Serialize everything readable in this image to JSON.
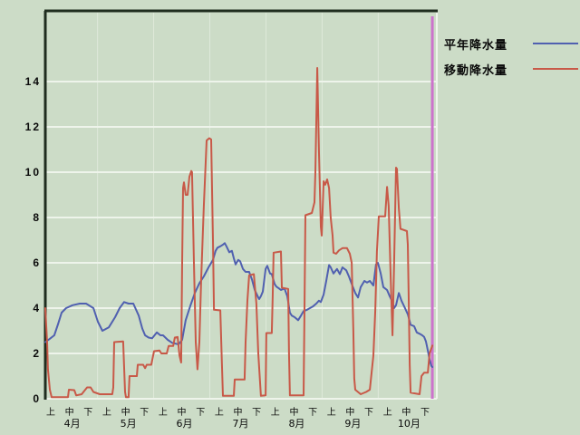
{
  "legend": {
    "entries": [
      {
        "label": "平年降水量",
        "color": "#5060b0"
      },
      {
        "label": "移動降水量",
        "color": "#c85948"
      }
    ]
  },
  "chart_data": {
    "type": "line",
    "title": "",
    "ylabel": "",
    "xlabel": "",
    "grid": true,
    "legend_position": "top-right-outside",
    "y_axis": {
      "ticks": [
        0,
        2,
        4,
        6,
        8,
        10,
        12,
        14
      ],
      "min": 0,
      "max": 17.1
    },
    "x_axis": {
      "period_ticks": [
        "上",
        "中",
        "下",
        "上",
        "中",
        "下",
        "上",
        "中",
        "下",
        "上",
        "中",
        "下",
        "上",
        "中",
        "下",
        "上",
        "中",
        "下",
        "上",
        "中",
        "下"
      ],
      "month_labels": [
        "4月",
        "5月",
        "6月",
        "7月",
        "8月",
        "9月",
        "10月"
      ],
      "months_span_ticks": 3
    },
    "marker_line": {
      "name": "current-position",
      "t": 20.39,
      "color": "#cc73cc"
    },
    "colors": {
      "background": "#ccdcc7",
      "gridline": "#eef4eb",
      "month_divider": "#dfe9da",
      "box_dark": "#1f2d1f",
      "box_light": "#eef4eb",
      "text": "#0a0a0a"
    },
    "series": [
      {
        "name": "平年降水量",
        "color": "#5060b0",
        "points": [
          [
            -0.29,
            2.5
          ],
          [
            -0.05,
            2.65
          ],
          [
            0.19,
            2.8
          ],
          [
            0.39,
            3.3
          ],
          [
            0.58,
            3.8
          ],
          [
            0.82,
            4.0
          ],
          [
            1.16,
            4.13
          ],
          [
            1.55,
            4.2
          ],
          [
            1.89,
            4.2
          ],
          [
            2.28,
            4.0
          ],
          [
            2.52,
            3.4
          ],
          [
            2.76,
            3.0
          ],
          [
            3.1,
            3.15
          ],
          [
            3.44,
            3.6
          ],
          [
            3.68,
            4.0
          ],
          [
            3.92,
            4.27
          ],
          [
            4.16,
            4.2
          ],
          [
            4.41,
            4.2
          ],
          [
            4.7,
            3.67
          ],
          [
            4.89,
            3.1
          ],
          [
            5.04,
            2.8
          ],
          [
            5.23,
            2.7
          ],
          [
            5.42,
            2.67
          ],
          [
            5.67,
            2.93
          ],
          [
            5.86,
            2.8
          ],
          [
            6.0,
            2.8
          ],
          [
            6.25,
            2.6
          ],
          [
            6.49,
            2.47
          ],
          [
            6.83,
            2.4
          ],
          [
            7.02,
            2.6
          ],
          [
            7.21,
            3.47
          ],
          [
            7.46,
            4.1
          ],
          [
            7.7,
            4.67
          ],
          [
            7.94,
            5.1
          ],
          [
            8.18,
            5.4
          ],
          [
            8.43,
            5.8
          ],
          [
            8.67,
            6.13
          ],
          [
            8.81,
            6.53
          ],
          [
            8.91,
            6.67
          ],
          [
            9.06,
            6.73
          ],
          [
            9.2,
            6.8
          ],
          [
            9.3,
            6.87
          ],
          [
            9.39,
            6.73
          ],
          [
            9.54,
            6.47
          ],
          [
            9.68,
            6.53
          ],
          [
            9.78,
            6.2
          ],
          [
            9.88,
            5.93
          ],
          [
            10.02,
            6.13
          ],
          [
            10.12,
            6.07
          ],
          [
            10.27,
            5.73
          ],
          [
            10.41,
            5.6
          ],
          [
            10.6,
            5.6
          ],
          [
            10.75,
            5.27
          ],
          [
            10.9,
            4.8
          ],
          [
            11.09,
            4.47
          ],
          [
            11.14,
            4.4
          ],
          [
            11.23,
            4.53
          ],
          [
            11.33,
            4.73
          ],
          [
            11.48,
            5.73
          ],
          [
            11.57,
            5.87
          ],
          [
            11.72,
            5.53
          ],
          [
            11.81,
            5.5
          ],
          [
            11.96,
            5.07
          ],
          [
            12.06,
            4.95
          ],
          [
            12.2,
            4.87
          ],
          [
            12.3,
            4.8
          ],
          [
            12.49,
            4.87
          ],
          [
            12.64,
            4.53
          ],
          [
            12.78,
            3.8
          ],
          [
            12.88,
            3.67
          ],
          [
            13.03,
            3.6
          ],
          [
            13.22,
            3.47
          ],
          [
            13.37,
            3.67
          ],
          [
            13.51,
            3.87
          ],
          [
            13.7,
            3.93
          ],
          [
            13.85,
            4.0
          ],
          [
            14.0,
            4.07
          ],
          [
            14.19,
            4.2
          ],
          [
            14.33,
            4.33
          ],
          [
            14.43,
            4.27
          ],
          [
            14.58,
            4.6
          ],
          [
            14.72,
            5.2
          ],
          [
            14.87,
            5.9
          ],
          [
            14.96,
            5.8
          ],
          [
            15.11,
            5.53
          ],
          [
            15.3,
            5.73
          ],
          [
            15.45,
            5.5
          ],
          [
            15.59,
            5.8
          ],
          [
            15.79,
            5.67
          ],
          [
            15.93,
            5.4
          ],
          [
            16.08,
            5.07
          ],
          [
            16.27,
            4.67
          ],
          [
            16.42,
            4.47
          ],
          [
            16.56,
            4.93
          ],
          [
            16.76,
            5.2
          ],
          [
            16.9,
            5.13
          ],
          [
            17.05,
            5.2
          ],
          [
            17.24,
            5.0
          ],
          [
            17.38,
            5.93
          ],
          [
            17.48,
            6.0
          ],
          [
            17.63,
            5.53
          ],
          [
            17.77,
            4.93
          ],
          [
            17.97,
            4.8
          ],
          [
            18.11,
            4.53
          ],
          [
            18.26,
            4.27
          ],
          [
            18.35,
            4.0
          ],
          [
            18.45,
            4.13
          ],
          [
            18.6,
            4.67
          ],
          [
            18.74,
            4.33
          ],
          [
            18.93,
            4.0
          ],
          [
            19.08,
            3.73
          ],
          [
            19.23,
            3.27
          ],
          [
            19.42,
            3.2
          ],
          [
            19.56,
            2.93
          ],
          [
            19.71,
            2.87
          ],
          [
            19.85,
            2.8
          ],
          [
            19.95,
            2.73
          ],
          [
            20.05,
            2.53
          ],
          [
            20.15,
            2.13
          ],
          [
            20.24,
            1.73
          ],
          [
            20.34,
            1.45
          ],
          [
            20.39,
            1.4
          ]
        ]
      },
      {
        "name": "移動降水量",
        "color": "#c85948",
        "points": [
          [
            -0.29,
            4.0
          ],
          [
            -0.19,
            2.4
          ],
          [
            -0.15,
            1.3
          ],
          [
            -0.05,
            0.4
          ],
          [
            0.05,
            0.07
          ],
          [
            0.92,
            0.07
          ],
          [
            0.97,
            0.4
          ],
          [
            1.26,
            0.38
          ],
          [
            1.36,
            0.15
          ],
          [
            1.65,
            0.2
          ],
          [
            1.94,
            0.5
          ],
          [
            2.13,
            0.5
          ],
          [
            2.28,
            0.3
          ],
          [
            2.62,
            0.2
          ],
          [
            3.29,
            0.2
          ],
          [
            3.34,
            0.5
          ],
          [
            3.39,
            2.5
          ],
          [
            3.87,
            2.53
          ],
          [
            3.97,
            0.3
          ],
          [
            4.02,
            0.07
          ],
          [
            4.16,
            0.07
          ],
          [
            4.21,
            1.0
          ],
          [
            4.6,
            1.0
          ],
          [
            4.65,
            1.5
          ],
          [
            4.94,
            1.5
          ],
          [
            5.04,
            1.35
          ],
          [
            5.13,
            1.5
          ],
          [
            5.37,
            1.5
          ],
          [
            5.52,
            2.1
          ],
          [
            5.81,
            2.13
          ],
          [
            5.91,
            2.0
          ],
          [
            6.2,
            2.0
          ],
          [
            6.3,
            2.33
          ],
          [
            6.54,
            2.33
          ],
          [
            6.63,
            2.7
          ],
          [
            6.78,
            2.73
          ],
          [
            6.88,
            1.9
          ],
          [
            6.97,
            1.6
          ],
          [
            7.02,
            6.0
          ],
          [
            7.07,
            9.3
          ],
          [
            7.12,
            9.55
          ],
          [
            7.21,
            9.0
          ],
          [
            7.31,
            9.0
          ],
          [
            7.41,
            9.8
          ],
          [
            7.51,
            10.05
          ],
          [
            7.55,
            10.0
          ],
          [
            7.65,
            6.0
          ],
          [
            7.75,
            2.5
          ],
          [
            7.84,
            1.3
          ],
          [
            7.94,
            2.5
          ],
          [
            8.04,
            5.3
          ],
          [
            8.18,
            8.5
          ],
          [
            8.33,
            11.4
          ],
          [
            8.47,
            11.5
          ],
          [
            8.57,
            11.45
          ],
          [
            8.67,
            7.0
          ],
          [
            8.72,
            3.93
          ],
          [
            9.06,
            3.9
          ],
          [
            9.15,
            1.5
          ],
          [
            9.2,
            0.13
          ],
          [
            9.78,
            0.13
          ],
          [
            9.83,
            0.85
          ],
          [
            10.36,
            0.85
          ],
          [
            10.41,
            2.5
          ],
          [
            10.51,
            4.33
          ],
          [
            10.6,
            5.45
          ],
          [
            10.85,
            5.5
          ],
          [
            10.99,
            4.2
          ],
          [
            11.09,
            2.0
          ],
          [
            11.23,
            0.13
          ],
          [
            11.48,
            0.15
          ],
          [
            11.52,
            2.9
          ],
          [
            11.81,
            2.9
          ],
          [
            11.86,
            4.5
          ],
          [
            11.91,
            6.45
          ],
          [
            12.3,
            6.5
          ],
          [
            12.35,
            4.9
          ],
          [
            12.69,
            4.85
          ],
          [
            12.73,
            2.0
          ],
          [
            12.78,
            0.15
          ],
          [
            13.51,
            0.15
          ],
          [
            13.56,
            4.0
          ],
          [
            13.61,
            8.1
          ],
          [
            13.95,
            8.2
          ],
          [
            14.09,
            8.67
          ],
          [
            14.14,
            10.0
          ],
          [
            14.24,
            14.6
          ],
          [
            14.33,
            11.0
          ],
          [
            14.43,
            7.6
          ],
          [
            14.48,
            7.2
          ],
          [
            14.58,
            9.6
          ],
          [
            14.67,
            9.45
          ],
          [
            14.77,
            9.68
          ],
          [
            14.87,
            9.3
          ],
          [
            14.96,
            8.0
          ],
          [
            15.06,
            7.2
          ],
          [
            15.11,
            6.45
          ],
          [
            15.25,
            6.4
          ],
          [
            15.4,
            6.55
          ],
          [
            15.59,
            6.65
          ],
          [
            15.83,
            6.65
          ],
          [
            15.98,
            6.4
          ],
          [
            16.08,
            6.0
          ],
          [
            16.17,
            3.0
          ],
          [
            16.22,
            0.9
          ],
          [
            16.27,
            0.4
          ],
          [
            16.56,
            0.2
          ],
          [
            16.85,
            0.3
          ],
          [
            17.05,
            0.4
          ],
          [
            17.14,
            1.1
          ],
          [
            17.24,
            1.9
          ],
          [
            17.34,
            3.9
          ],
          [
            17.43,
            6.5
          ],
          [
            17.53,
            8.05
          ],
          [
            17.87,
            8.05
          ],
          [
            17.97,
            9.35
          ],
          [
            18.06,
            8.5
          ],
          [
            18.16,
            5.5
          ],
          [
            18.26,
            2.8
          ],
          [
            18.35,
            6.0
          ],
          [
            18.45,
            10.2
          ],
          [
            18.5,
            10.15
          ],
          [
            18.6,
            8.4
          ],
          [
            18.69,
            7.5
          ],
          [
            19.03,
            7.4
          ],
          [
            19.08,
            6.8
          ],
          [
            19.13,
            4.4
          ],
          [
            19.18,
            1.5
          ],
          [
            19.23,
            0.27
          ],
          [
            19.71,
            0.2
          ],
          [
            19.81,
            1.0
          ],
          [
            19.95,
            1.15
          ],
          [
            20.15,
            1.15
          ],
          [
            20.24,
            2.0
          ],
          [
            20.39,
            2.35
          ]
        ]
      }
    ]
  }
}
